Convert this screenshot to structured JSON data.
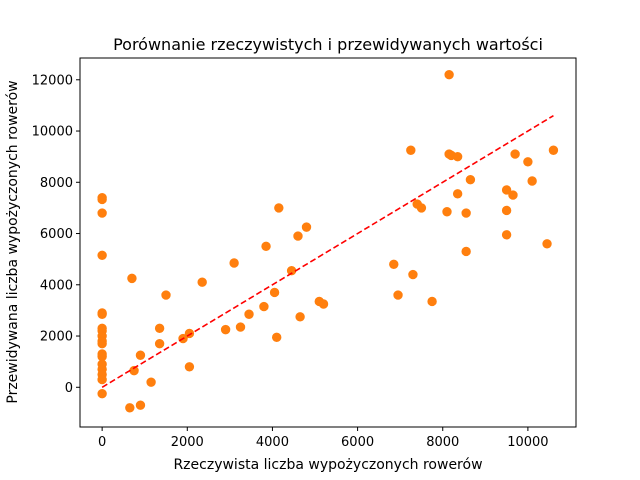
{
  "chart_data": {
    "type": "scatter",
    "title": "Porównanie rzeczywistych i przewidywanych wartości",
    "xlabel": "Rzeczywista liczba wypożyczonych rowerów",
    "ylabel": "Przewidywana liczba wypożyczonych rowerów",
    "xlim": [
      -520,
      11130
    ],
    "ylim": [
      -1550,
      12850
    ],
    "xticks": [
      0,
      2000,
      4000,
      6000,
      8000,
      10000
    ],
    "yticks": [
      0,
      2000,
      4000,
      6000,
      8000,
      10000,
      12000
    ],
    "grid": false,
    "legend": "none",
    "point_color": "#ff7f0e",
    "point_edge_color": "#1f77b4",
    "reference_line": {
      "color": "#ff0000",
      "style": "dashed",
      "x": [
        0,
        10600
      ],
      "y": [
        0,
        10600
      ]
    },
    "points": [
      [
        0,
        7400
      ],
      [
        0,
        7330
      ],
      [
        0,
        6800
      ],
      [
        0,
        5150
      ],
      [
        0,
        2900
      ],
      [
        0,
        2850
      ],
      [
        0,
        2300
      ],
      [
        0,
        2200
      ],
      [
        0,
        2000
      ],
      [
        0,
        1800
      ],
      [
        0,
        1700
      ],
      [
        0,
        1300
      ],
      [
        0,
        1200
      ],
      [
        0,
        900
      ],
      [
        0,
        700
      ],
      [
        0,
        500
      ],
      [
        0,
        300
      ],
      [
        0,
        -250
      ],
      [
        700,
        4250
      ],
      [
        750,
        650
      ],
      [
        650,
        -800
      ],
      [
        900,
        -700
      ],
      [
        900,
        1250
      ],
      [
        1150,
        200
      ],
      [
        1350,
        2300
      ],
      [
        1350,
        1700
      ],
      [
        1500,
        3600
      ],
      [
        1900,
        1900
      ],
      [
        2050,
        2100
      ],
      [
        2050,
        800
      ],
      [
        2350,
        4100
      ],
      [
        2900,
        2250
      ],
      [
        3100,
        4850
      ],
      [
        3250,
        2350
      ],
      [
        3450,
        2850
      ],
      [
        3800,
        3150
      ],
      [
        3850,
        5500
      ],
      [
        4050,
        3700
      ],
      [
        4100,
        1950
      ],
      [
        4150,
        7000
      ],
      [
        4450,
        4550
      ],
      [
        4600,
        5900
      ],
      [
        4650,
        2750
      ],
      [
        4800,
        6250
      ],
      [
        5100,
        3350
      ],
      [
        5200,
        3250
      ],
      [
        6850,
        4800
      ],
      [
        6950,
        3600
      ],
      [
        7250,
        9250
      ],
      [
        7300,
        4400
      ],
      [
        7400,
        7150
      ],
      [
        7500,
        7000
      ],
      [
        7750,
        3350
      ],
      [
        8100,
        6850
      ],
      [
        8150,
        12200
      ],
      [
        8150,
        9100
      ],
      [
        8200,
        9050
      ],
      [
        8350,
        9000
      ],
      [
        8350,
        7550
      ],
      [
        8550,
        6800
      ],
      [
        8550,
        5300
      ],
      [
        8650,
        8100
      ],
      [
        9500,
        6900
      ],
      [
        9500,
        7700
      ],
      [
        9500,
        5950
      ],
      [
        9650,
        7500
      ],
      [
        9700,
        9100
      ],
      [
        10000,
        8800
      ],
      [
        10100,
        8050
      ],
      [
        10450,
        5600
      ],
      [
        10600,
        9250
      ]
    ]
  }
}
